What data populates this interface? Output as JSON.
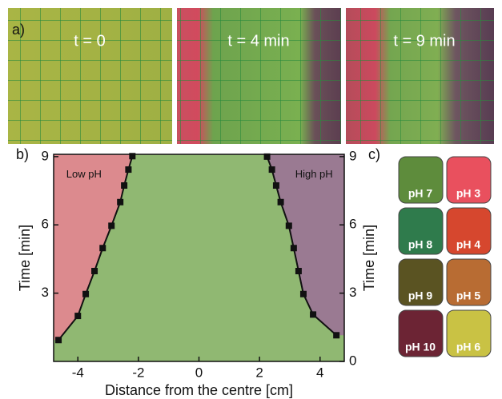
{
  "panel_labels": [
    "a)",
    "b)",
    "c)"
  ],
  "photos": [
    {
      "label": "t = 0"
    },
    {
      "label": "t = 4 min"
    },
    {
      "label": "t = 9 min"
    }
  ],
  "swatches": [
    {
      "label": "pH 7",
      "color": "#5e8c3c"
    },
    {
      "label": "pH 3",
      "color": "#e9505e"
    },
    {
      "label": "pH 8",
      "color": "#2f7b4c"
    },
    {
      "label": "pH 4",
      "color": "#d6472e"
    },
    {
      "label": "pH 9",
      "color": "#5a5322"
    },
    {
      "label": "pH 5",
      "color": "#b86c33"
    },
    {
      "label": "pH 10",
      "color": "#6c2434"
    },
    {
      "label": "pH 6",
      "color": "#c9c244"
    }
  ],
  "chart_data": {
    "type": "line",
    "xlabel": "Distance from the centre [cm]",
    "ylabel": "Time [min]",
    "y2label": "Time [min]",
    "background": "#90b872",
    "xlim": [
      -4.8,
      4.8
    ],
    "ylim": [
      0,
      9.1
    ],
    "y2lim": [
      0,
      9.1
    ],
    "xticks": [
      -4,
      -2,
      0,
      2,
      4
    ],
    "yticks": [
      3,
      6,
      9
    ],
    "y2ticks": [
      0,
      3,
      6,
      9
    ],
    "annotations": [
      {
        "text": "Low pH",
        "x": -3.8,
        "y": 8.2
      },
      {
        "text": "High pH",
        "x": 3.8,
        "y": 8.2
      }
    ],
    "series": [
      {
        "color": "#111111",
        "region_color": "#dc8a8e",
        "x": [
          -4.64,
          -4.0,
          -3.74,
          -3.45,
          -3.18,
          -2.89,
          -2.6,
          -2.47,
          -2.33,
          -2.2
        ],
        "values": [
          0.94,
          2.0,
          2.96,
          3.97,
          4.98,
          5.96,
          7.0,
          7.73,
          8.43,
          9.02
        ]
      },
      {
        "color": "#111111",
        "region_color": "#9a7a92",
        "x": [
          2.25,
          2.41,
          2.55,
          2.7,
          2.97,
          3.13,
          3.29,
          3.45,
          3.77,
          4.54
        ],
        "values": [
          9.0,
          8.43,
          7.73,
          7.0,
          5.96,
          4.98,
          3.97,
          2.96,
          2.06,
          1.15
        ]
      }
    ]
  }
}
